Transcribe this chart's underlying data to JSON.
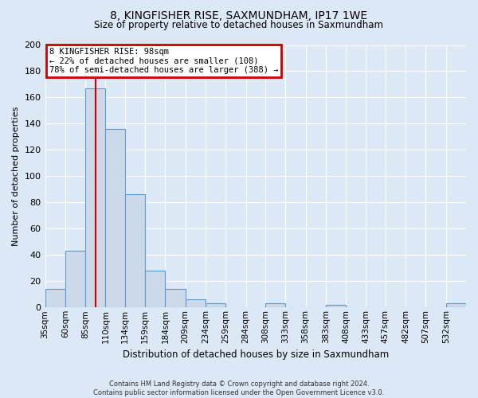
{
  "title": "8, KINGFISHER RISE, SAXMUNDHAM, IP17 1WE",
  "subtitle": "Size of property relative to detached houses in Saxmundham",
  "xlabel": "Distribution of detached houses by size in Saxmundham",
  "ylabel": "Number of detached properties",
  "bar_values": [
    14,
    43,
    167,
    136,
    86,
    28,
    14,
    6,
    3,
    0,
    0,
    3,
    0,
    0,
    2,
    0,
    0,
    0,
    0,
    0,
    3
  ],
  "bin_labels": [
    "35sqm",
    "60sqm",
    "85sqm",
    "110sqm",
    "134sqm",
    "159sqm",
    "184sqm",
    "209sqm",
    "234sqm",
    "259sqm",
    "284sqm",
    "308sqm",
    "333sqm",
    "358sqm",
    "383sqm",
    "408sqm",
    "433sqm",
    "457sqm",
    "482sqm",
    "507sqm",
    "532sqm"
  ],
  "bar_color": "#ccd9e8",
  "bar_edge_color": "#5b9bd5",
  "ylim": [
    0,
    200
  ],
  "yticks": [
    0,
    20,
    40,
    60,
    80,
    100,
    120,
    140,
    160,
    180,
    200
  ],
  "vline_x": 98,
  "vline_color": "#cc0000",
  "annotation_title": "8 KINGFISHER RISE: 98sqm",
  "annotation_line1": "← 22% of detached houses are smaller (108)",
  "annotation_line2": "78% of semi-detached houses are larger (388) →",
  "annotation_box_color": "#cc0000",
  "footer_line1": "Contains HM Land Registry data © Crown copyright and database right 2024.",
  "footer_line2": "Contains public sector information licensed under the Open Government Licence v3.0.",
  "background_color": "#dce8f5",
  "plot_bg_color": "#dce8f5",
  "bin_edges": [
    35,
    60,
    85,
    110,
    134,
    159,
    184,
    209,
    234,
    259,
    284,
    308,
    333,
    358,
    383,
    408,
    433,
    457,
    482,
    507,
    532,
    557
  ]
}
